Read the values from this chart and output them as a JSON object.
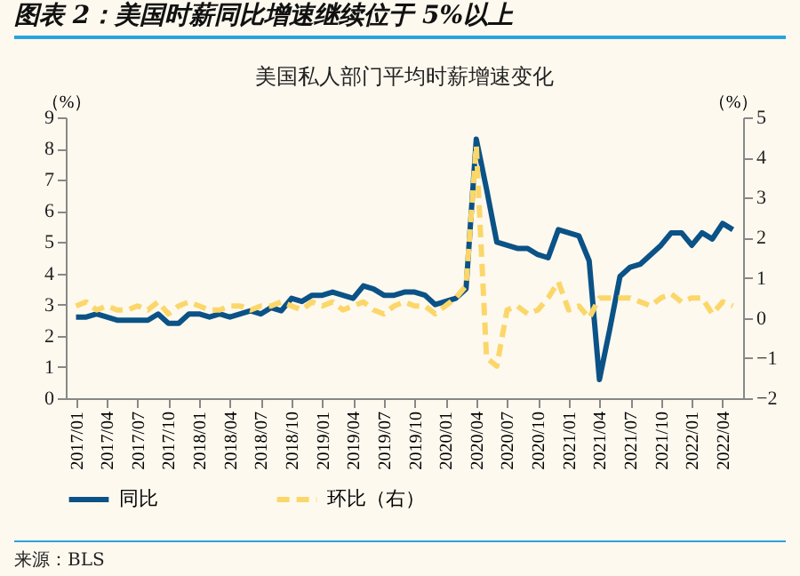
{
  "chart_data": {
    "type": "line",
    "title": "图表 2：美国时薪同比增速继续位于 5%以上",
    "subtitle": "美国私人部门平均时薪增速变化",
    "ylabel": "（%）",
    "y2label": "（%）",
    "categories": [
      "2017/01",
      null,
      null,
      "2017/04",
      null,
      null,
      "2017/07",
      null,
      null,
      "2017/10",
      null,
      null,
      "2018/01",
      null,
      null,
      "2018/04",
      null,
      null,
      "2018/07",
      null,
      null,
      "2018/10",
      null,
      null,
      "2019/01",
      null,
      null,
      "2019/04",
      null,
      null,
      "2019/07",
      null,
      null,
      "2019/10",
      null,
      null,
      "2020/01",
      null,
      null,
      "2020/04",
      null,
      null,
      "2020/07",
      null,
      null,
      "2020/10",
      null,
      null,
      "2021/01",
      null,
      null,
      "2021/04",
      null,
      null,
      "2021/07",
      null,
      null,
      "2021/10",
      null,
      null,
      "2022/01",
      null,
      null,
      "2022/04",
      null
    ],
    "series": [
      {
        "name": "同比",
        "color": "#0b5286",
        "line_style": "solid",
        "values": [
          2.6,
          2.6,
          2.7,
          2.6,
          2.5,
          2.5,
          2.5,
          2.5,
          2.7,
          2.4,
          2.4,
          2.7,
          2.7,
          2.6,
          2.7,
          2.6,
          2.7,
          2.8,
          2.7,
          2.9,
          2.8,
          3.2,
          3.1,
          3.3,
          3.3,
          3.4,
          3.3,
          3.2,
          3.6,
          3.5,
          3.3,
          3.3,
          3.4,
          3.4,
          3.3,
          3.0,
          3.1,
          3.2,
          3.5,
          8.3,
          6.7,
          5.0,
          4.9,
          4.8,
          4.8,
          4.6,
          4.5,
          5.4,
          5.3,
          5.2,
          4.4,
          0.6,
          2.2,
          3.9,
          4.2,
          4.3,
          4.6,
          4.9,
          5.3,
          5.3,
          4.9,
          5.3,
          5.1,
          5.6,
          5.4
        ]
      },
      {
        "name": "环比（右）",
        "color": "#fbd76a",
        "line_style": "dashed",
        "axis": "y2",
        "values": [
          0.3,
          0.4,
          0.2,
          0.3,
          0.2,
          0.2,
          0.3,
          0.2,
          0.4,
          0.1,
          0.3,
          0.4,
          0.3,
          0.2,
          0.2,
          0.3,
          0.3,
          0.2,
          0.3,
          0.3,
          0.4,
          0.3,
          0.2,
          0.4,
          0.3,
          0.4,
          0.2,
          0.3,
          0.4,
          0.2,
          0.1,
          0.3,
          0.4,
          0.3,
          0.3,
          0.1,
          0.3,
          0.5,
          0.8,
          4.3,
          -1.0,
          -1.2,
          0.2,
          0.3,
          0.1,
          0.2,
          0.5,
          0.9,
          0.2,
          0.3,
          0.0,
          0.5,
          0.5,
          0.5,
          0.5,
          0.4,
          0.3,
          0.5,
          0.6,
          0.4,
          0.5,
          0.5,
          0.1,
          0.4,
          0.3
        ]
      }
    ],
    "ylim": [
      0,
      9
    ],
    "yticks": [
      0,
      1,
      2,
      3,
      4,
      5,
      6,
      7,
      8,
      9
    ],
    "y2lim": [
      -2,
      5
    ],
    "y2ticks": [
      -2,
      -1,
      0,
      1,
      2,
      3,
      4,
      5
    ],
    "legend": "bottom",
    "annotations": [
      "来源：BLS"
    ]
  }
}
